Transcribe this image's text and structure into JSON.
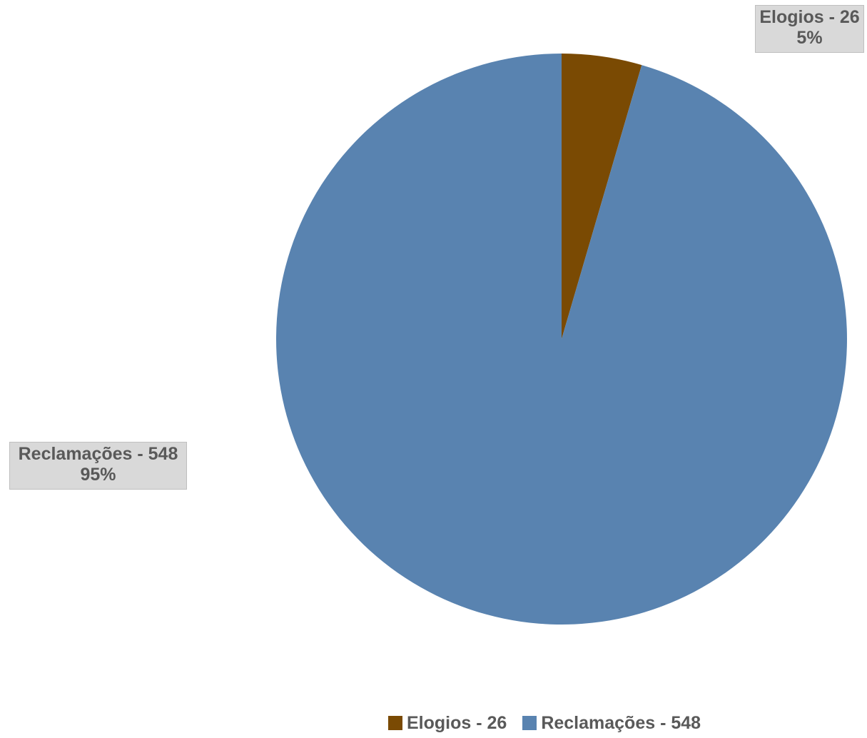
{
  "chart_data": {
    "type": "pie",
    "title": "",
    "categories": [
      "Elogios - 26",
      "Reclamações - 548"
    ],
    "values": [
      26,
      548
    ],
    "percent_labels": [
      "5%",
      "95%"
    ],
    "colors": [
      "#7a4a03",
      "#5983b0"
    ],
    "start_angle_deg": 0,
    "direction": "clockwise",
    "legend_position": "bottom",
    "data_labels": [
      {
        "name": "Elogios - 26",
        "percent": "5%"
      },
      {
        "name": "Reclamações - 548",
        "percent": "95%"
      }
    ],
    "legend": [
      {
        "label": "Elogios - 26",
        "color": "#7a4a03"
      },
      {
        "label": "Reclamações - 548",
        "color": "#5983b0"
      }
    ]
  }
}
